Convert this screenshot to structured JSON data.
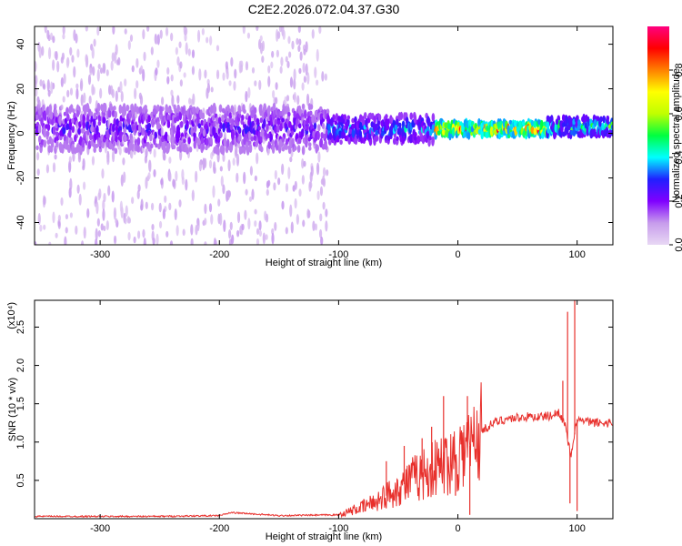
{
  "title": "C2E2.2026.072.04.37.G30",
  "chart_data": [
    {
      "type": "heatmap",
      "xlabel": "Height of straight line (km)",
      "ylabel": "Frequency (Hz)",
      "xlim": [
        -355,
        130
      ],
      "ylim": [
        -50,
        48
      ],
      "x_ticks": [
        -300,
        -200,
        -100,
        0,
        100
      ],
      "y_ticks": [
        -40,
        -20,
        0,
        20,
        40
      ],
      "colorbar": {
        "label": "Normalized spectral amplitude",
        "range": [
          0,
          1
        ],
        "ticks": [
          0.0,
          0.2,
          0.4,
          0.6,
          0.8
        ],
        "tick_labels": [
          "0.0",
          "0.2",
          "0.4",
          "0.6",
          "0.8"
        ],
        "colors": [
          "#e8d8f4",
          "#c79cec",
          "#8000ff",
          "#2020ff",
          "#00ffff",
          "#00ff40",
          "#c0ff00",
          "#ffff00",
          "#ff8000",
          "#ff0000",
          "#ff0080"
        ]
      },
      "regions": [
        {
          "x_range": [
            -355,
            -110
          ],
          "band_center_hz": 2,
          "band_halfwidth_hz": 10,
          "scatter_extent_hz": [
            -50,
            48
          ],
          "peak_amplitude": 0.3
        },
        {
          "x_range": [
            -110,
            -20
          ],
          "band_center_hz": 2,
          "band_halfwidth_hz": 6,
          "peak_amplitude": 0.45
        },
        {
          "x_range": [
            -20,
            75
          ],
          "band_center_hz": 2,
          "band_halfwidth_hz": 3,
          "peak_amplitude": 1.0
        },
        {
          "x_range": [
            75,
            130
          ],
          "band_center_hz": 3,
          "band_halfwidth_hz": 4,
          "peak_amplitude": 0.6
        }
      ]
    },
    {
      "type": "line",
      "xlabel": "Height of straight line (km)",
      "ylabel": "SNR (10 * v/v)",
      "y_multiplier": "(x10⁴)",
      "xlim": [
        -355,
        130
      ],
      "ylim": [
        0,
        2.85
      ],
      "x_ticks": [
        -300,
        -200,
        -100,
        0,
        100
      ],
      "y_ticks": [
        0.5,
        1.0,
        1.5,
        2.0,
        2.5
      ],
      "series": [
        {
          "color": "#e8302c",
          "x": [
            -355,
            -300,
            -250,
            -200,
            -190,
            -150,
            -100,
            -90,
            -80,
            -70,
            -60,
            -50,
            -40,
            -30,
            -20,
            -10,
            -5,
            0,
            5,
            10,
            15,
            20,
            30,
            40,
            50,
            60,
            70,
            80,
            85,
            90,
            95,
            100,
            105,
            110,
            120,
            130
          ],
          "y": [
            0.03,
            0.03,
            0.03,
            0.04,
            0.08,
            0.04,
            0.05,
            0.1,
            0.15,
            0.22,
            0.3,
            0.4,
            0.5,
            0.58,
            0.65,
            0.72,
            0.8,
            0.85,
            0.9,
            0.95,
            1.05,
            1.15,
            1.25,
            1.3,
            1.32,
            1.33,
            1.33,
            1.35,
            1.4,
            1.2,
            0.8,
            1.3,
            1.27,
            1.26,
            1.25,
            1.25
          ],
          "spikes": [
            [
              -60,
              0.75
            ],
            [
              -45,
              0.95
            ],
            [
              -30,
              1.05
            ],
            [
              -22,
              1.2
            ],
            [
              -12,
              1.6
            ],
            [
              -2,
              0.3
            ],
            [
              8,
              1.6
            ],
            [
              10,
              0.05
            ],
            [
              88,
              1.8
            ],
            [
              92,
              2.7
            ],
            [
              94,
              0.2
            ],
            [
              98,
              2.85
            ],
            [
              100,
              0.1
            ]
          ]
        }
      ]
    }
  ]
}
